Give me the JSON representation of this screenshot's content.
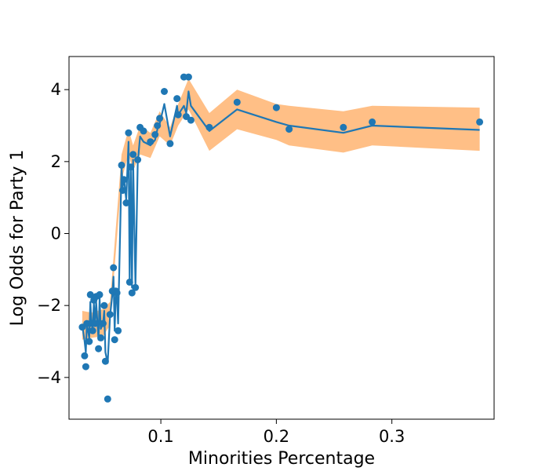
{
  "chart_data": {
    "type": "scatter",
    "title": "",
    "xlabel": "Minorities Percentage",
    "ylabel": "Log Odds for Party 1",
    "xlim": [
      0.0205,
      0.3885
    ],
    "ylim": [
      -5.16,
      4.92
    ],
    "x_ticks": [
      0.1,
      0.2,
      0.3
    ],
    "x_tick_labels": [
      "0.1",
      "0.2",
      "0.3"
    ],
    "y_ticks": [
      -4,
      -2,
      0,
      2,
      4
    ],
    "y_tick_labels": [
      "−4",
      "−2",
      "0",
      "2",
      "4"
    ],
    "grid": false,
    "colors": {
      "points": "#1f77b4",
      "line": "#1f77b4",
      "band": "#ffbf86"
    },
    "series": [
      {
        "name": "observed",
        "type": "scatter",
        "x": [
          0.032,
          0.034,
          0.035,
          0.036,
          0.038,
          0.039,
          0.04,
          0.041,
          0.042,
          0.043,
          0.044,
          0.046,
          0.047,
          0.048,
          0.05,
          0.051,
          0.052,
          0.054,
          0.056,
          0.058,
          0.059,
          0.06,
          0.061,
          0.062,
          0.063,
          0.066,
          0.067,
          0.068,
          0.07,
          0.072,
          0.073,
          0.074,
          0.075,
          0.076,
          0.078,
          0.08,
          0.082,
          0.085,
          0.091,
          0.095,
          0.097,
          0.099,
          0.103,
          0.108,
          0.114,
          0.115,
          0.12,
          0.122,
          0.124,
          0.126,
          0.142,
          0.166,
          0.2,
          0.211,
          0.258,
          0.283,
          0.376
        ],
        "y": [
          -2.6,
          -3.4,
          -3.7,
          -2.5,
          -3.0,
          -1.7,
          -2.5,
          -2.7,
          -1.85,
          -2.5,
          -1.75,
          -3.2,
          -1.7,
          -2.9,
          -2.5,
          -2.0,
          -3.55,
          -4.6,
          -2.25,
          -1.6,
          -0.95,
          -2.95,
          -1.6,
          -1.65,
          -2.7,
          1.9,
          1.2,
          1.5,
          0.85,
          2.8,
          -1.35,
          1.85,
          -1.65,
          2.2,
          -1.5,
          2.05,
          2.95,
          2.85,
          2.55,
          2.75,
          3.0,
          3.2,
          3.95,
          2.5,
          3.75,
          3.3,
          4.35,
          3.25,
          4.35,
          3.15,
          2.95,
          3.65,
          3.5,
          2.9,
          2.95,
          3.1,
          3.1
        ]
      },
      {
        "name": "fitted",
        "type": "line",
        "x": [
          0.032,
          0.034,
          0.035,
          0.036,
          0.038,
          0.039,
          0.04,
          0.041,
          0.042,
          0.043,
          0.044,
          0.046,
          0.047,
          0.048,
          0.05,
          0.051,
          0.052,
          0.054,
          0.056,
          0.058,
          0.059,
          0.06,
          0.061,
          0.062,
          0.063,
          0.066,
          0.067,
          0.068,
          0.07,
          0.072,
          0.073,
          0.074,
          0.075,
          0.076,
          0.078,
          0.08,
          0.082,
          0.085,
          0.091,
          0.095,
          0.097,
          0.099,
          0.103,
          0.108,
          0.114,
          0.115,
          0.12,
          0.122,
          0.124,
          0.126,
          0.142,
          0.166,
          0.2,
          0.211,
          0.258,
          0.283,
          0.376
        ],
        "y": [
          -2.55,
          -3.0,
          -3.3,
          -2.5,
          -2.9,
          -1.9,
          -2.55,
          -2.6,
          -1.95,
          -2.55,
          -1.9,
          -2.95,
          -1.8,
          -2.65,
          -2.5,
          -2.15,
          -3.3,
          -3.6,
          -2.3,
          -1.7,
          -1.2,
          -2.7,
          -1.7,
          -1.75,
          -2.5,
          1.85,
          1.3,
          1.55,
          0.95,
          2.55,
          -1.25,
          1.75,
          -1.5,
          2.05,
          -1.45,
          1.95,
          2.7,
          2.55,
          2.45,
          2.6,
          2.9,
          3.05,
          3.6,
          2.7,
          3.55,
          3.3,
          3.55,
          3.35,
          3.95,
          3.55,
          2.85,
          3.45,
          3.1,
          3.0,
          2.8,
          3.0,
          2.88
        ]
      },
      {
        "name": "interval",
        "type": "band",
        "x": [
          0.032,
          0.04,
          0.05,
          0.056,
          0.066,
          0.072,
          0.076,
          0.082,
          0.091,
          0.099,
          0.108,
          0.115,
          0.124,
          0.142,
          0.166,
          0.2,
          0.211,
          0.258,
          0.283,
          0.376
        ],
        "lower": [
          -2.95,
          -2.9,
          -2.85,
          -2.55,
          1.5,
          2.2,
          1.75,
          2.2,
          2.1,
          2.7,
          2.45,
          3.0,
          3.45,
          2.3,
          2.9,
          2.6,
          2.45,
          2.25,
          2.45,
          2.3
        ],
        "upper": [
          -2.15,
          -2.2,
          -2.1,
          -1.9,
          2.2,
          2.9,
          2.45,
          3.0,
          2.8,
          3.4,
          2.95,
          3.6,
          4.3,
          3.35,
          4.0,
          3.6,
          3.55,
          3.4,
          3.55,
          3.5
        ]
      }
    ]
  }
}
